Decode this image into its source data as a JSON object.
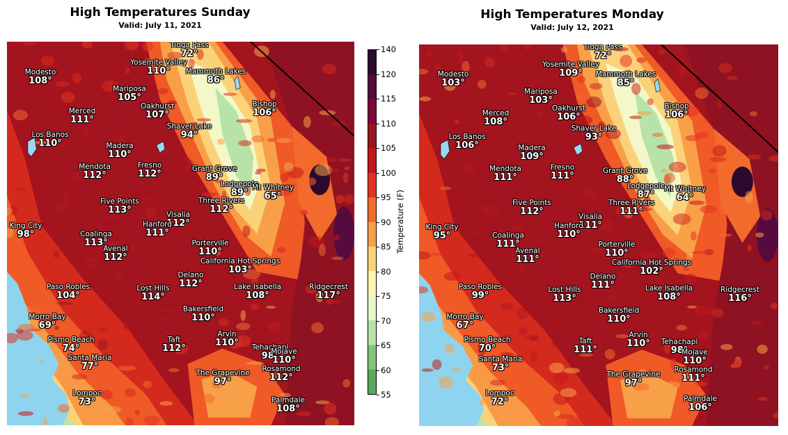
{
  "colorbar": {
    "label": "Temperature (F)",
    "ticks": [
      "140",
      "120",
      "115",
      "110",
      "105",
      "100",
      "95",
      "90",
      "85",
      "80",
      "75",
      "70",
      "65",
      "60",
      "55"
    ],
    "colors": [
      "#2b0a2e",
      "#560b3f",
      "#7d0a36",
      "#9b1620",
      "#c3171c",
      "#e33320",
      "#f36a2d",
      "#f8a048",
      "#fbd27a",
      "#fdf4b2",
      "#e6f7c6",
      "#b7e3a8",
      "#84c57c",
      "#5aaa5e"
    ]
  },
  "panels": [
    {
      "title": "High Temperatures Sunday",
      "subtitle": "Valid: July 11, 2021",
      "cities": [
        {
          "name": "Tioga Pass",
          "temp": "72°"
        },
        {
          "name": "Yosemite Valley",
          "temp": "110°"
        },
        {
          "name": "Mammoth Lakes",
          "temp": "86°"
        },
        {
          "name": "Modesto",
          "temp": "108°"
        },
        {
          "name": "Mariposa",
          "temp": "105°"
        },
        {
          "name": "Bishop",
          "temp": "106°"
        },
        {
          "name": "Oakhurst",
          "temp": "107°"
        },
        {
          "name": "Merced",
          "temp": "111°"
        },
        {
          "name": "Shaver Lake",
          "temp": "94°"
        },
        {
          "name": "Los Banos",
          "temp": "110°"
        },
        {
          "name": "Madera",
          "temp": "110°"
        },
        {
          "name": "Mendota",
          "temp": "112°"
        },
        {
          "name": "Fresno",
          "temp": "112°"
        },
        {
          "name": "Grant Grove",
          "temp": "89°"
        },
        {
          "name": "Lodgepole",
          "temp": "89°"
        },
        {
          "name": "Mt Whitney",
          "temp": "65°"
        },
        {
          "name": "Five Points",
          "temp": "113°"
        },
        {
          "name": "Three Rivers",
          "temp": "112°"
        },
        {
          "name": "King City",
          "temp": "98°"
        },
        {
          "name": "Visalia",
          "temp": "112°"
        },
        {
          "name": "Coalinga",
          "temp": "113°"
        },
        {
          "name": "Hanford",
          "temp": "111°"
        },
        {
          "name": "Avenal",
          "temp": "112°"
        },
        {
          "name": "Porterville",
          "temp": "110°"
        },
        {
          "name": "California Hot Springs",
          "temp": "103°"
        },
        {
          "name": "Delano",
          "temp": "112°"
        },
        {
          "name": "Paso Robles",
          "temp": "104°"
        },
        {
          "name": "Lost Hills",
          "temp": "114°"
        },
        {
          "name": "Lake Isabella",
          "temp": "108°"
        },
        {
          "name": "Ridgecrest",
          "temp": "117°"
        },
        {
          "name": "Bakersfield",
          "temp": "110°"
        },
        {
          "name": "Morro Bay",
          "temp": "69°"
        },
        {
          "name": "Arvin",
          "temp": "110°"
        },
        {
          "name": "Pismo Beach",
          "temp": "74°"
        },
        {
          "name": "Taft",
          "temp": "112°"
        },
        {
          "name": "Tehachapi",
          "temp": "98°"
        },
        {
          "name": "Mojave",
          "temp": "110°"
        },
        {
          "name": "Santa Maria",
          "temp": "77°"
        },
        {
          "name": "Rosamond",
          "temp": "112°"
        },
        {
          "name": "The Grapevine",
          "temp": "97°"
        },
        {
          "name": "Lompoc",
          "temp": "73°"
        },
        {
          "name": "Palmdale",
          "temp": "108°"
        }
      ]
    },
    {
      "title": "High Temperatures Monday",
      "subtitle": "Valid: July 12, 2021",
      "cities": [
        {
          "name": "Tioga Pass",
          "temp": "72°"
        },
        {
          "name": "Yosemite Valley",
          "temp": "109°"
        },
        {
          "name": "Mammoth Lakes",
          "temp": "85°"
        },
        {
          "name": "Modesto",
          "temp": "103°"
        },
        {
          "name": "Mariposa",
          "temp": "103°"
        },
        {
          "name": "Bishop",
          "temp": "106°"
        },
        {
          "name": "Oakhurst",
          "temp": "106°"
        },
        {
          "name": "Merced",
          "temp": "108°"
        },
        {
          "name": "Shaver Lake",
          "temp": "93°"
        },
        {
          "name": "Los Banos",
          "temp": "106°"
        },
        {
          "name": "Madera",
          "temp": "109°"
        },
        {
          "name": "Mendota",
          "temp": "111°"
        },
        {
          "name": "Fresno",
          "temp": "111°"
        },
        {
          "name": "Grant Grove",
          "temp": "88°"
        },
        {
          "name": "Lodgepole",
          "temp": "87°"
        },
        {
          "name": "Mt Whitney",
          "temp": "64°"
        },
        {
          "name": "Five Points",
          "temp": "112°"
        },
        {
          "name": "Three Rivers",
          "temp": "111°"
        },
        {
          "name": "King City",
          "temp": "95°"
        },
        {
          "name": "Visalia",
          "temp": "111°"
        },
        {
          "name": "Coalinga",
          "temp": "111°"
        },
        {
          "name": "Hanford",
          "temp": "110°"
        },
        {
          "name": "Avenal",
          "temp": "111°"
        },
        {
          "name": "Porterville",
          "temp": "110°"
        },
        {
          "name": "California Hot Springs",
          "temp": "102°"
        },
        {
          "name": "Delano",
          "temp": "111°"
        },
        {
          "name": "Paso Robles",
          "temp": "99°"
        },
        {
          "name": "Lost Hills",
          "temp": "113°"
        },
        {
          "name": "Lake Isabella",
          "temp": "108°"
        },
        {
          "name": "Ridgecrest",
          "temp": "116°"
        },
        {
          "name": "Bakersfield",
          "temp": "110°"
        },
        {
          "name": "Morro Bay",
          "temp": "67°"
        },
        {
          "name": "Arvin",
          "temp": "110°"
        },
        {
          "name": "Pismo Beach",
          "temp": "70°"
        },
        {
          "name": "Taft",
          "temp": "111°"
        },
        {
          "name": "Tehachapi",
          "temp": "98°"
        },
        {
          "name": "Mojave",
          "temp": "110°"
        },
        {
          "name": "Santa Maria",
          "temp": "73°"
        },
        {
          "name": "Rosamond",
          "temp": "111°"
        },
        {
          "name": "The Grapevine",
          "temp": "97°"
        },
        {
          "name": "Lompoc",
          "temp": "72°"
        },
        {
          "name": "Palmdale",
          "temp": "106°"
        }
      ]
    }
  ]
}
